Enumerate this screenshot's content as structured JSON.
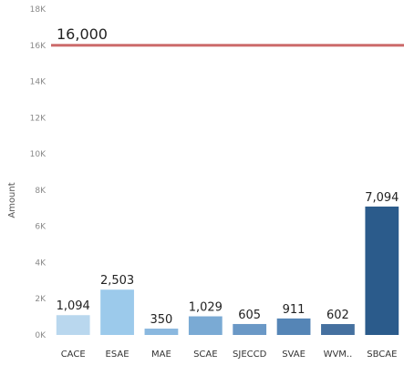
{
  "chart_data": {
    "type": "bar",
    "categories": [
      "CACE",
      "ESAE",
      "MAE",
      "SCAE",
      "SJECCD",
      "SVAE",
      "WVM..",
      "SBCAE"
    ],
    "values": [
      1094,
      2503,
      350,
      1029,
      605,
      911,
      602,
      7094
    ],
    "data_labels": [
      "1,094",
      "2,503",
      "350",
      "1,029",
      "605",
      "911",
      "602",
      "7,094"
    ],
    "colors": [
      "#b9d7ee",
      "#9ccaeb",
      "#8ab8df",
      "#7aaad4",
      "#6a98c6",
      "#5585b6",
      "#45709f",
      "#2b5b8b"
    ],
    "ylabel": "Amount",
    "ylim": [
      0,
      18000
    ],
    "yticks": [
      0,
      2000,
      4000,
      6000,
      8000,
      10000,
      12000,
      14000,
      16000,
      18000
    ],
    "ytick_labels": [
      "0K",
      "2K",
      "4K",
      "6K",
      "8K",
      "10K",
      "12K",
      "14K",
      "16K",
      "18K"
    ],
    "reference_line": {
      "value": 16000,
      "label": "16,000",
      "color": "#cc6b6b"
    },
    "grid": false,
    "legend": "none"
  }
}
